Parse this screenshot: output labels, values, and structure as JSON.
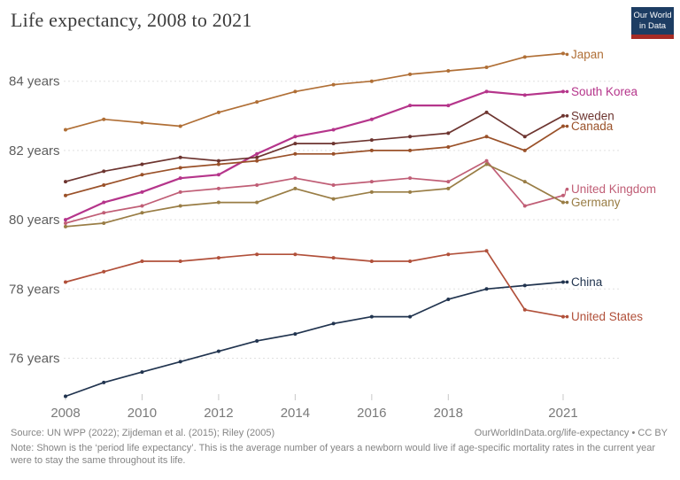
{
  "header": {
    "title": "Life expectancy, 2008 to 2021",
    "logo": {
      "line1": "Our World",
      "line2": "in Data",
      "bg_color": "#1d3d63",
      "accent_color": "#a62b25"
    }
  },
  "chart_data": {
    "type": "line",
    "title": "Life expectancy, 2008 to 2021",
    "xlabel": "",
    "ylabel": "",
    "x": [
      2008,
      2009,
      2010,
      2011,
      2012,
      2013,
      2014,
      2015,
      2016,
      2017,
      2018,
      2019,
      2020,
      2021
    ],
    "x_tick_labels": [
      2008,
      2010,
      2012,
      2014,
      2016,
      2018,
      2021
    ],
    "y_ticks": [
      76,
      78,
      80,
      82,
      84
    ],
    "y_tick_suffix": " years",
    "ylim": [
      74.5,
      85.3
    ],
    "xlim": [
      2008,
      2021
    ],
    "grid": "horizontal-dashed",
    "legend_position": "right-edge-labels",
    "series": [
      {
        "name": "Japan",
        "color": "#b06f36",
        "values": [
          82.6,
          82.9,
          82.8,
          82.7,
          83.1,
          83.4,
          83.7,
          83.9,
          84.0,
          84.2,
          84.3,
          84.4,
          84.7,
          84.8
        ]
      },
      {
        "name": "South Korea",
        "color": "#b5358b",
        "values": [
          80.0,
          80.5,
          80.8,
          81.2,
          81.3,
          81.9,
          82.4,
          82.6,
          82.9,
          83.3,
          83.3,
          83.7,
          83.6,
          83.7
        ]
      },
      {
        "name": "Sweden",
        "color": "#6d3530",
        "values": [
          81.1,
          81.4,
          81.6,
          81.8,
          81.7,
          81.8,
          82.2,
          82.2,
          82.3,
          82.4,
          82.5,
          83.1,
          82.4,
          83.0
        ]
      },
      {
        "name": "Canada",
        "color": "#9a5129",
        "values": [
          80.7,
          81.0,
          81.3,
          81.5,
          81.6,
          81.7,
          81.9,
          81.9,
          82.0,
          82.0,
          82.1,
          82.4,
          82.0,
          82.7
        ]
      },
      {
        "name": "United Kingdom",
        "color": "#c05e76",
        "values": [
          79.9,
          80.2,
          80.4,
          80.8,
          80.9,
          81.0,
          81.2,
          81.0,
          81.1,
          81.2,
          81.1,
          81.7,
          80.4,
          80.7
        ]
      },
      {
        "name": "Germany",
        "color": "#997d45",
        "values": [
          79.8,
          79.9,
          80.2,
          80.4,
          80.5,
          80.5,
          80.9,
          80.6,
          80.8,
          80.8,
          80.9,
          81.6,
          81.1,
          80.5
        ]
      },
      {
        "name": "China",
        "color": "#21344f",
        "values": [
          74.9,
          75.3,
          75.6,
          75.9,
          76.2,
          76.5,
          76.7,
          77.0,
          77.2,
          77.2,
          77.7,
          78.0,
          78.1,
          78.2
        ]
      },
      {
        "name": "United States",
        "color": "#b1503a",
        "values": [
          78.2,
          78.5,
          78.8,
          78.8,
          78.9,
          79.0,
          79.0,
          78.9,
          78.8,
          78.8,
          79.0,
          79.1,
          77.4,
          77.2
        ]
      }
    ]
  },
  "footer": {
    "source": "Source: UN WPP (2022); Zijdeman et al. (2015); Riley (2005)",
    "link": "OurWorldInData.org/life-expectancy • CC BY",
    "note": "Note: Shown is the ‘period life expectancy’. This is the average number of years a newborn would live if age-specific mortality rates in the current year were to stay the same throughout its life."
  }
}
